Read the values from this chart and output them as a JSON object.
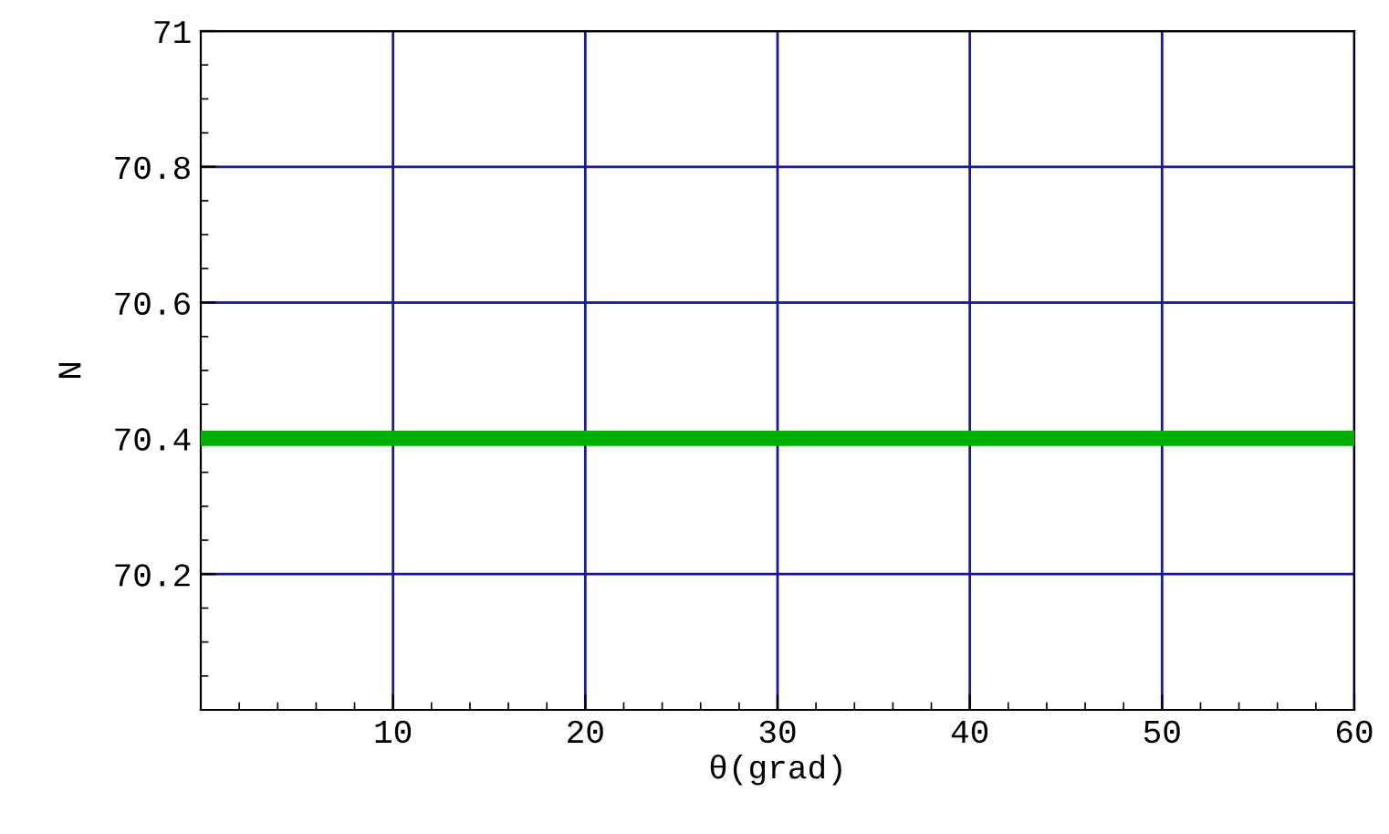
{
  "chart_data": {
    "type": "line",
    "xlabel": "θ(grad)",
    "ylabel": "N",
    "x": [
      0,
      60
    ],
    "series": [
      {
        "color": "#00b000",
        "values": [
          70.4,
          70.4
        ]
      }
    ],
    "xlim": [
      0,
      60
    ],
    "ylim": [
      70.0,
      71.0
    ],
    "xticks": [
      10,
      20,
      30,
      40,
      50,
      60
    ],
    "yticks": [
      70.2,
      70.4,
      70.6,
      70.8,
      71
    ],
    "grid": true,
    "marker": "none",
    "line_style": "solid"
  }
}
